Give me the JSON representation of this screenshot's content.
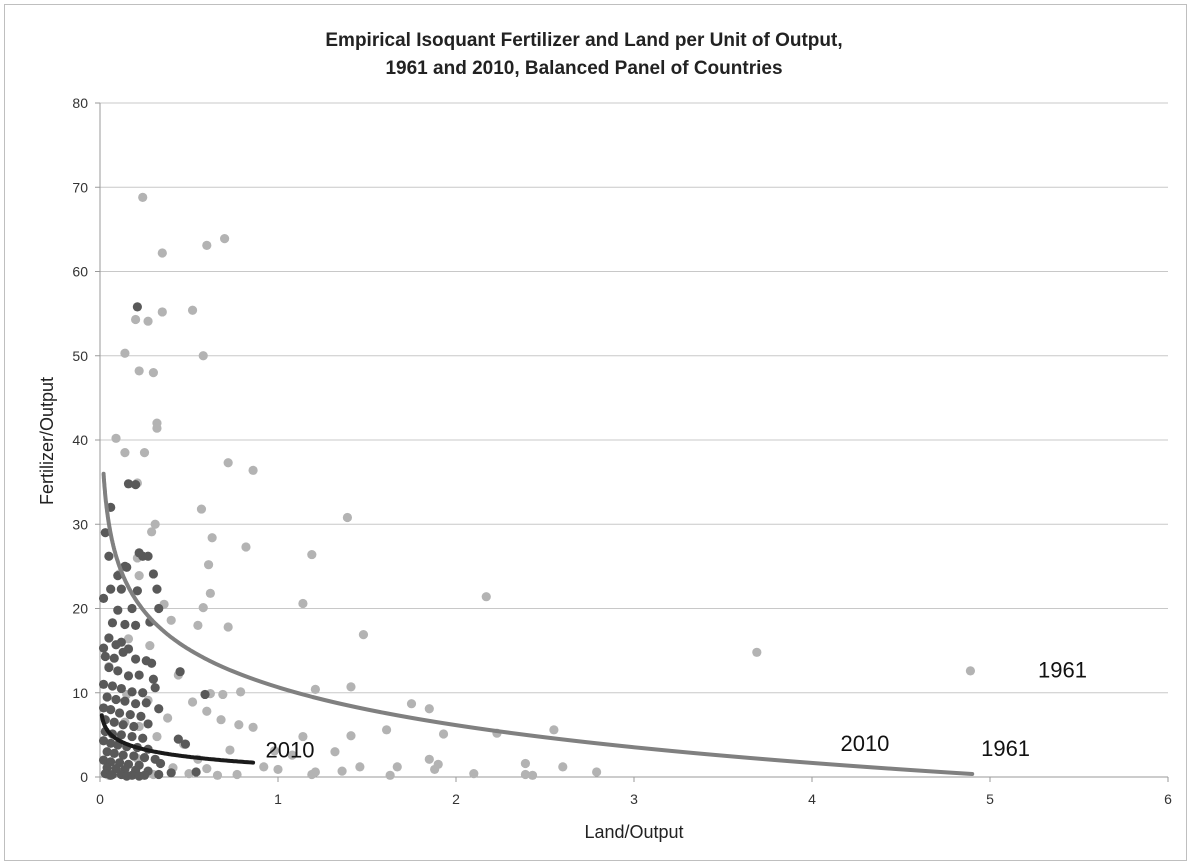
{
  "chart_data": {
    "type": "scatter",
    "title": [
      "Empirical Isoquant Fertilizer and Land per Unit of Output,",
      "1961 and 2010, Balanced Panel of Countries"
    ],
    "xlabel": "Land/Output",
    "ylabel": "Fertilizer/Output",
    "xlim": [
      0,
      6
    ],
    "ylim": [
      0,
      80
    ],
    "xticks": [
      "0",
      "1",
      "2",
      "3",
      "4",
      "5",
      "6"
    ],
    "yticks": [
      "0",
      "10",
      "20",
      "30",
      "40",
      "50",
      "60",
      "70",
      "80"
    ],
    "grid": "horizontal",
    "colors": {
      "1961": "#b3b3b3",
      "2010": "#595959",
      "curve1961": "#808080",
      "curve2010": "#1a1a1a"
    },
    "series": [
      {
        "name": "1961",
        "points": [
          [
            0.24,
            68.8
          ],
          [
            0.7,
            63.9
          ],
          [
            0.6,
            63.1
          ],
          [
            0.35,
            62.2
          ],
          [
            0.52,
            55.4
          ],
          [
            0.35,
            55.2
          ],
          [
            0.2,
            54.3
          ],
          [
            0.27,
            54.1
          ],
          [
            0.14,
            50.3
          ],
          [
            0.58,
            50.0
          ],
          [
            0.3,
            48.0
          ],
          [
            0.22,
            48.2
          ],
          [
            0.32,
            42.0
          ],
          [
            0.32,
            41.4
          ],
          [
            0.09,
            40.2
          ],
          [
            0.14,
            38.5
          ],
          [
            0.25,
            38.5
          ],
          [
            0.72,
            37.3
          ],
          [
            0.86,
            36.4
          ],
          [
            0.21,
            34.9
          ],
          [
            0.57,
            31.8
          ],
          [
            1.39,
            30.8
          ],
          [
            0.31,
            30.0
          ],
          [
            0.29,
            29.1
          ],
          [
            0.63,
            28.4
          ],
          [
            0.82,
            27.3
          ],
          [
            1.19,
            26.4
          ],
          [
            0.21,
            26.0
          ],
          [
            0.61,
            25.2
          ],
          [
            0.11,
            24.1
          ],
          [
            0.22,
            23.9
          ],
          [
            0.62,
            21.8
          ],
          [
            2.17,
            21.4
          ],
          [
            1.14,
            20.6
          ],
          [
            0.36,
            20.5
          ],
          [
            0.58,
            20.1
          ],
          [
            0.4,
            18.6
          ],
          [
            0.55,
            18.0
          ],
          [
            0.72,
            17.8
          ],
          [
            1.48,
            16.9
          ],
          [
            0.05,
            13.1
          ],
          [
            0.28,
            15.6
          ],
          [
            0.16,
            16.4
          ],
          [
            0.44,
            12.1
          ],
          [
            0.62,
            9.9
          ],
          [
            0.69,
            9.8
          ],
          [
            0.79,
            10.1
          ],
          [
            3.69,
            14.8
          ],
          [
            4.89,
            12.6
          ],
          [
            1.21,
            10.4
          ],
          [
            1.41,
            10.7
          ],
          [
            0.15,
            9.8
          ],
          [
            0.27,
            9.1
          ],
          [
            0.52,
            8.9
          ],
          [
            1.75,
            8.7
          ],
          [
            1.85,
            8.1
          ],
          [
            1.93,
            5.1
          ],
          [
            0.6,
            7.8
          ],
          [
            0.38,
            7.0
          ],
          [
            0.68,
            6.8
          ],
          [
            0.78,
            6.2
          ],
          [
            0.86,
            5.9
          ],
          [
            0.14,
            6.5
          ],
          [
            0.22,
            6.0
          ],
          [
            1.14,
            4.8
          ],
          [
            1.41,
            4.9
          ],
          [
            1.61,
            5.6
          ],
          [
            2.23,
            5.2
          ],
          [
            2.55,
            5.6
          ],
          [
            0.32,
            4.8
          ],
          [
            0.47,
            3.9
          ],
          [
            0.73,
            3.2
          ],
          [
            0.98,
            3.1
          ],
          [
            1.08,
            2.6
          ],
          [
            1.32,
            3.0
          ],
          [
            1.85,
            2.1
          ],
          [
            1.9,
            1.5
          ],
          [
            2.39,
            1.6
          ],
          [
            0.55,
            2.1
          ],
          [
            0.92,
            1.2
          ],
          [
            0.21,
            2.2
          ],
          [
            0.41,
            1.1
          ],
          [
            1.0,
            0.9
          ],
          [
            1.46,
            1.2
          ],
          [
            1.67,
            1.2
          ],
          [
            1.88,
            0.9
          ],
          [
            2.6,
            1.2
          ],
          [
            2.1,
            0.4
          ],
          [
            2.39,
            0.3
          ],
          [
            2.43,
            0.2
          ],
          [
            2.79,
            0.6
          ],
          [
            1.21,
            0.6
          ],
          [
            1.36,
            0.7
          ],
          [
            0.66,
            0.2
          ],
          [
            0.5,
            0.4
          ],
          [
            0.77,
            0.3
          ],
          [
            0.6,
            1.0
          ],
          [
            0.12,
            0.3
          ],
          [
            0.05,
            0.2
          ],
          [
            0.3,
            0.3
          ],
          [
            1.63,
            0.2
          ],
          [
            1.19,
            0.3
          ]
        ]
      },
      {
        "name": "2010",
        "points": [
          [
            0.21,
            55.8
          ],
          [
            0.03,
            29.0
          ],
          [
            0.06,
            32.0
          ],
          [
            0.16,
            34.8
          ],
          [
            0.2,
            34.7
          ],
          [
            0.24,
            26.2
          ],
          [
            0.27,
            26.2
          ],
          [
            0.05,
            26.2
          ],
          [
            0.22,
            26.6
          ],
          [
            0.1,
            23.9
          ],
          [
            0.14,
            25.0
          ],
          [
            0.15,
            24.9
          ],
          [
            0.21,
            22.1
          ],
          [
            0.3,
            24.1
          ],
          [
            0.32,
            22.3
          ],
          [
            0.02,
            21.2
          ],
          [
            0.06,
            22.3
          ],
          [
            0.12,
            22.3
          ],
          [
            0.18,
            20.0
          ],
          [
            0.1,
            19.8
          ],
          [
            0.33,
            20.0
          ],
          [
            0.07,
            18.3
          ],
          [
            0.14,
            18.1
          ],
          [
            0.2,
            18.0
          ],
          [
            0.28,
            18.4
          ],
          [
            0.02,
            15.3
          ],
          [
            0.05,
            16.5
          ],
          [
            0.09,
            15.7
          ],
          [
            0.12,
            16.0
          ],
          [
            0.16,
            15.2
          ],
          [
            0.03,
            14.3
          ],
          [
            0.08,
            14.1
          ],
          [
            0.13,
            14.8
          ],
          [
            0.2,
            14.0
          ],
          [
            0.26,
            13.8
          ],
          [
            0.29,
            13.5
          ],
          [
            0.05,
            13.0
          ],
          [
            0.1,
            12.6
          ],
          [
            0.16,
            12.0
          ],
          [
            0.22,
            12.1
          ],
          [
            0.3,
            11.6
          ],
          [
            0.45,
            12.5
          ],
          [
            0.02,
            11.0
          ],
          [
            0.07,
            10.8
          ],
          [
            0.12,
            10.5
          ],
          [
            0.18,
            10.1
          ],
          [
            0.24,
            10.0
          ],
          [
            0.31,
            10.6
          ],
          [
            0.59,
            9.8
          ],
          [
            0.04,
            9.5
          ],
          [
            0.09,
            9.2
          ],
          [
            0.14,
            9.0
          ],
          [
            0.2,
            8.7
          ],
          [
            0.26,
            8.8
          ],
          [
            0.33,
            8.1
          ],
          [
            0.02,
            8.2
          ],
          [
            0.06,
            8.0
          ],
          [
            0.11,
            7.6
          ],
          [
            0.17,
            7.4
          ],
          [
            0.23,
            7.2
          ],
          [
            0.03,
            6.8
          ],
          [
            0.08,
            6.5
          ],
          [
            0.13,
            6.2
          ],
          [
            0.19,
            6.0
          ],
          [
            0.27,
            6.3
          ],
          [
            0.03,
            5.4
          ],
          [
            0.07,
            5.1
          ],
          [
            0.12,
            5.0
          ],
          [
            0.18,
            4.8
          ],
          [
            0.24,
            4.6
          ],
          [
            0.02,
            4.3
          ],
          [
            0.06,
            4.0
          ],
          [
            0.1,
            3.8
          ],
          [
            0.15,
            3.6
          ],
          [
            0.21,
            3.5
          ],
          [
            0.27,
            3.3
          ],
          [
            0.44,
            4.5
          ],
          [
            0.48,
            3.9
          ],
          [
            0.04,
            3.0
          ],
          [
            0.08,
            2.8
          ],
          [
            0.13,
            2.6
          ],
          [
            0.19,
            2.5
          ],
          [
            0.25,
            2.3
          ],
          [
            0.31,
            2.1
          ],
          [
            0.02,
            2.0
          ],
          [
            0.06,
            1.8
          ],
          [
            0.11,
            1.7
          ],
          [
            0.16,
            1.5
          ],
          [
            0.22,
            1.4
          ],
          [
            0.34,
            1.6
          ],
          [
            0.04,
            1.1
          ],
          [
            0.09,
            1.0
          ],
          [
            0.14,
            0.9
          ],
          [
            0.2,
            0.8
          ],
          [
            0.27,
            0.7
          ],
          [
            0.03,
            0.4
          ],
          [
            0.07,
            0.3
          ],
          [
            0.12,
            0.3
          ],
          [
            0.18,
            0.2
          ],
          [
            0.25,
            0.2
          ],
          [
            0.33,
            0.3
          ],
          [
            0.06,
            0.2
          ],
          [
            0.15,
            0.1
          ],
          [
            0.22,
            0.1
          ],
          [
            0.54,
            0.6
          ],
          [
            0.4,
            0.5
          ]
        ]
      }
    ],
    "curves": [
      {
        "name": "1961",
        "label": "1961",
        "x_range": [
          0.02,
          4.9
        ],
        "a": 10.65,
        "b": -6.48
      },
      {
        "name": "2010",
        "label": "2010",
        "x_range": [
          0.01,
          0.86
        ],
        "a": 1.52,
        "b": -1.26
      }
    ],
    "annotations": [
      {
        "text": "1961",
        "x": 5.27,
        "y": 11.8
      },
      {
        "text": "1961",
        "x": 4.95,
        "y": 2.5
      },
      {
        "text": "2010",
        "x": 4.16,
        "y": 3.1
      },
      {
        "text": "2010",
        "x": 0.93,
        "y": 2.3
      }
    ]
  }
}
